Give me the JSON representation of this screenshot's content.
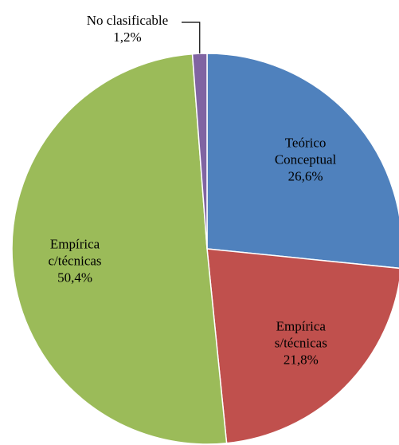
{
  "chart_data": {
    "type": "pie",
    "categories": [
      "Teórico Conceptual",
      "Empírica s/técnicas",
      "Empírica c/técnicas",
      "No clasificable"
    ],
    "values": [
      26.6,
      21.8,
      50.4,
      1.2
    ],
    "value_labels": [
      "26,6%",
      "21,8%",
      "50,4%",
      "1,2%"
    ],
    "colors": [
      "#4f81bd",
      "#c0504d",
      "#9bbb59",
      "#8064a2"
    ]
  }
}
